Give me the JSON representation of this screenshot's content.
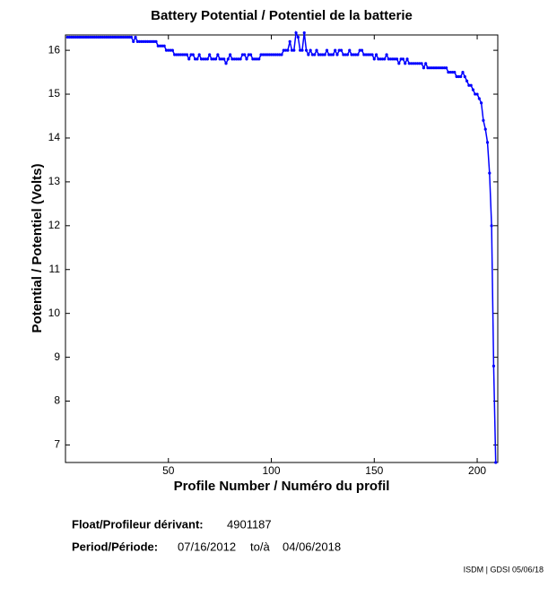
{
  "chart_data": {
    "type": "line",
    "title": "Battery Potential / Potentiel de la batterie",
    "xlabel": "Profile Number / Numéro du profil",
    "ylabel": "Potential / Potentiel (Volts)",
    "color": "#0000ff",
    "xlim": [
      0,
      210
    ],
    "xticks": [
      50,
      100,
      150,
      200
    ],
    "ylim": [
      6.6,
      16.35
    ],
    "yticks": [
      7,
      8,
      9,
      10,
      11,
      12,
      13,
      14,
      15,
      16
    ],
    "x": [
      1,
      2,
      3,
      4,
      5,
      6,
      7,
      8,
      9,
      10,
      11,
      12,
      13,
      14,
      15,
      16,
      17,
      18,
      19,
      20,
      21,
      22,
      23,
      24,
      25,
      26,
      27,
      28,
      29,
      30,
      31,
      32,
      33,
      34,
      35,
      36,
      37,
      38,
      39,
      40,
      41,
      42,
      43,
      44,
      45,
      46,
      47,
      48,
      49,
      50,
      51,
      52,
      53,
      54,
      55,
      56,
      57,
      58,
      59,
      60,
      61,
      62,
      63,
      64,
      65,
      66,
      67,
      68,
      69,
      70,
      71,
      72,
      73,
      74,
      75,
      76,
      77,
      78,
      79,
      80,
      81,
      82,
      83,
      84,
      85,
      86,
      87,
      88,
      89,
      90,
      91,
      92,
      93,
      94,
      95,
      96,
      97,
      98,
      99,
      100,
      101,
      102,
      103,
      104,
      105,
      106,
      107,
      108,
      109,
      110,
      111,
      112,
      113,
      114,
      115,
      116,
      117,
      118,
      119,
      120,
      121,
      122,
      123,
      124,
      125,
      126,
      127,
      128,
      129,
      130,
      131,
      132,
      133,
      134,
      135,
      136,
      137,
      138,
      139,
      140,
      141,
      142,
      143,
      144,
      145,
      146,
      147,
      148,
      149,
      150,
      151,
      152,
      153,
      154,
      155,
      156,
      157,
      158,
      159,
      160,
      161,
      162,
      163,
      164,
      165,
      166,
      167,
      168,
      169,
      170,
      171,
      172,
      173,
      174,
      175,
      176,
      177,
      178,
      179,
      180,
      181,
      182,
      183,
      184,
      185,
      186,
      187,
      188,
      189,
      190,
      191,
      192,
      193,
      194,
      195,
      196,
      197,
      198,
      199,
      200,
      201,
      202,
      203,
      204,
      205,
      206,
      207,
      208,
      209
    ],
    "values": [
      16.3,
      16.3,
      16.3,
      16.3,
      16.3,
      16.3,
      16.3,
      16.3,
      16.3,
      16.3,
      16.3,
      16.3,
      16.3,
      16.3,
      16.3,
      16.3,
      16.3,
      16.3,
      16.3,
      16.3,
      16.3,
      16.3,
      16.3,
      16.3,
      16.3,
      16.3,
      16.3,
      16.3,
      16.3,
      16.3,
      16.3,
      16.3,
      16.2,
      16.3,
      16.2,
      16.2,
      16.2,
      16.2,
      16.2,
      16.2,
      16.2,
      16.2,
      16.2,
      16.2,
      16.1,
      16.1,
      16.1,
      16.1,
      16.0,
      16.0,
      16.0,
      16.0,
      15.9,
      15.9,
      15.9,
      15.9,
      15.9,
      15.9,
      15.9,
      15.8,
      15.9,
      15.9,
      15.8,
      15.8,
      15.9,
      15.8,
      15.8,
      15.8,
      15.8,
      15.9,
      15.8,
      15.8,
      15.8,
      15.9,
      15.8,
      15.8,
      15.8,
      15.7,
      15.8,
      15.9,
      15.8,
      15.8,
      15.8,
      15.8,
      15.8,
      15.9,
      15.9,
      15.8,
      15.9,
      15.9,
      15.8,
      15.8,
      15.8,
      15.8,
      15.9,
      15.9,
      15.9,
      15.9,
      15.9,
      15.9,
      15.9,
      15.9,
      15.9,
      15.9,
      15.9,
      16.0,
      16.0,
      16.0,
      16.2,
      16.0,
      16.0,
      16.4,
      16.3,
      16.0,
      16.0,
      16.4,
      16.0,
      15.9,
      16.0,
      15.9,
      15.9,
      16.0,
      15.9,
      15.9,
      15.9,
      15.9,
      16.0,
      15.9,
      15.9,
      15.9,
      16.0,
      15.9,
      16.0,
      16.0,
      15.9,
      15.9,
      15.9,
      16.0,
      15.9,
      15.9,
      15.9,
      15.9,
      16.0,
      16.0,
      15.9,
      15.9,
      15.9,
      15.9,
      15.9,
      15.8,
      15.9,
      15.8,
      15.8,
      15.8,
      15.8,
      15.9,
      15.8,
      15.8,
      15.8,
      15.8,
      15.8,
      15.7,
      15.8,
      15.8,
      15.7,
      15.8,
      15.7,
      15.7,
      15.7,
      15.7,
      15.7,
      15.7,
      15.7,
      15.6,
      15.7,
      15.6,
      15.6,
      15.6,
      15.6,
      15.6,
      15.6,
      15.6,
      15.6,
      15.6,
      15.6,
      15.5,
      15.5,
      15.5,
      15.5,
      15.4,
      15.4,
      15.4,
      15.5,
      15.4,
      15.3,
      15.2,
      15.2,
      15.1,
      15.0,
      15.0,
      14.9,
      14.8,
      14.4,
      14.2,
      13.9,
      13.2,
      12.0,
      8.8,
      6.6
    ],
    "float_label": "Float/Profileur dérivant:",
    "float_id": "4901187",
    "period_label": "Period/Période:",
    "period_start": "07/16/2012",
    "period_sep": "to/à",
    "period_end": "04/06/2018",
    "footer": "ISDM | GDSI 05/06/18"
  }
}
